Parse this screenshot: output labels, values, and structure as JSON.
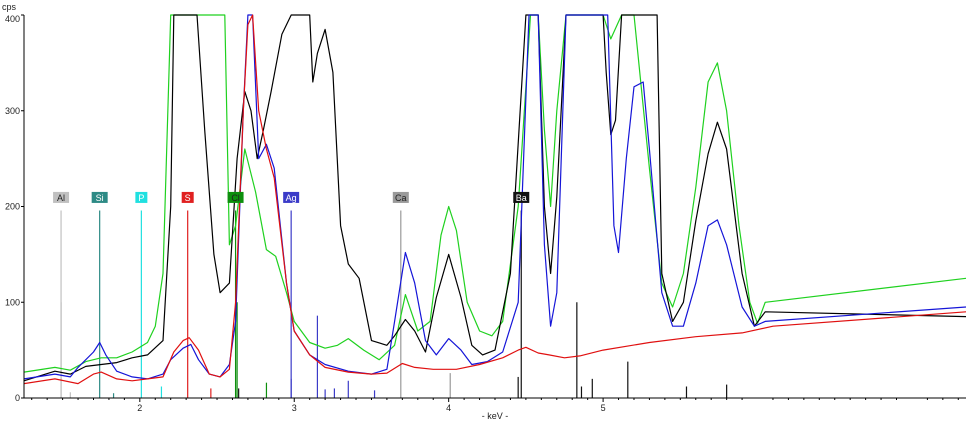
{
  "chart_data": {
    "type": "line",
    "title": "",
    "xlabel": "- keV -",
    "ylabel": "cps",
    "xlim": [
      1.25,
      7.35
    ],
    "ylim": [
      0,
      400
    ],
    "x_ticks": [
      {
        "value": 2,
        "label": "2"
      },
      {
        "value": 3,
        "label": "3"
      },
      {
        "value": 4,
        "label": "4"
      },
      {
        "value": 5,
        "label": "5"
      }
    ],
    "y_ticks": [
      {
        "value": 0,
        "label": "0"
      },
      {
        "value": 100,
        "label": "100"
      },
      {
        "value": 200,
        "label": "200"
      },
      {
        "value": 300,
        "label": "300"
      },
      {
        "value": 400,
        "label": "400"
      }
    ],
    "grid": false,
    "series": [
      {
        "color": "#1fd11f",
        "points": [
          [
            1.25,
            27
          ],
          [
            1.45,
            32
          ],
          [
            1.55,
            29
          ],
          [
            1.65,
            38
          ],
          [
            1.75,
            42
          ],
          [
            1.85,
            42
          ],
          [
            1.95,
            48
          ],
          [
            2.05,
            58
          ],
          [
            2.1,
            75
          ],
          [
            2.15,
            130
          ],
          [
            2.2,
            400
          ],
          [
            2.55,
            400
          ],
          [
            2.58,
            160
          ],
          [
            2.62,
            180
          ],
          [
            2.68,
            260
          ],
          [
            2.75,
            215
          ],
          [
            2.82,
            155
          ],
          [
            2.88,
            148
          ],
          [
            2.95,
            110
          ],
          [
            3.0,
            80
          ],
          [
            3.1,
            58
          ],
          [
            3.2,
            52
          ],
          [
            3.28,
            55
          ],
          [
            3.35,
            62
          ],
          [
            3.45,
            50
          ],
          [
            3.55,
            40
          ],
          [
            3.65,
            55
          ],
          [
            3.72,
            108
          ],
          [
            3.8,
            70
          ],
          [
            3.88,
            80
          ],
          [
            3.95,
            170
          ],
          [
            4.0,
            200
          ],
          [
            4.05,
            175
          ],
          [
            4.12,
            100
          ],
          [
            4.2,
            70
          ],
          [
            4.28,
            65
          ],
          [
            4.35,
            80
          ],
          [
            4.45,
            200
          ],
          [
            4.53,
            400
          ],
          [
            4.58,
            400
          ],
          [
            4.62,
            280
          ],
          [
            4.66,
            200
          ],
          [
            4.7,
            300
          ],
          [
            4.76,
            400
          ],
          [
            4.95,
            400
          ],
          [
            5.0,
            400
          ],
          [
            5.05,
            375
          ],
          [
            5.12,
            400
          ],
          [
            5.2,
            400
          ],
          [
            5.3,
            240
          ],
          [
            5.38,
            120
          ],
          [
            5.45,
            95
          ],
          [
            5.52,
            130
          ],
          [
            5.6,
            220
          ],
          [
            5.68,
            330
          ],
          [
            5.74,
            350
          ],
          [
            5.8,
            300
          ],
          [
            5.88,
            180
          ],
          [
            5.95,
            100
          ],
          [
            6.0,
            78
          ],
          [
            6.05,
            100
          ],
          [
            7.35,
            125
          ]
        ]
      },
      {
        "color": "#000000",
        "points": [
          [
            1.25,
            18
          ],
          [
            1.45,
            28
          ],
          [
            1.55,
            25
          ],
          [
            1.65,
            33
          ],
          [
            1.75,
            35
          ],
          [
            1.85,
            37
          ],
          [
            1.95,
            42
          ],
          [
            2.05,
            45
          ],
          [
            2.15,
            60
          ],
          [
            2.2,
            200
          ],
          [
            2.22,
            400
          ],
          [
            2.37,
            400
          ],
          [
            2.42,
            280
          ],
          [
            2.48,
            150
          ],
          [
            2.52,
            110
          ],
          [
            2.58,
            120
          ],
          [
            2.63,
            250
          ],
          [
            2.68,
            320
          ],
          [
            2.72,
            300
          ],
          [
            2.76,
            250
          ],
          [
            2.8,
            280
          ],
          [
            2.85,
            320
          ],
          [
            2.92,
            380
          ],
          [
            2.98,
            400
          ],
          [
            3.1,
            400
          ],
          [
            3.12,
            330
          ],
          [
            3.15,
            360
          ],
          [
            3.2,
            385
          ],
          [
            3.25,
            340
          ],
          [
            3.3,
            180
          ],
          [
            3.35,
            140
          ],
          [
            3.42,
            125
          ],
          [
            3.5,
            60
          ],
          [
            3.6,
            55
          ],
          [
            3.65,
            65
          ],
          [
            3.72,
            82
          ],
          [
            3.78,
            70
          ],
          [
            3.85,
            48
          ],
          [
            3.92,
            105
          ],
          [
            4.0,
            150
          ],
          [
            4.08,
            105
          ],
          [
            4.15,
            55
          ],
          [
            4.22,
            45
          ],
          [
            4.3,
            50
          ],
          [
            4.4,
            130
          ],
          [
            4.5,
            400
          ],
          [
            4.58,
            400
          ],
          [
            4.62,
            200
          ],
          [
            4.66,
            130
          ],
          [
            4.7,
            210
          ],
          [
            4.76,
            400
          ],
          [
            5.0,
            400
          ],
          [
            5.02,
            340
          ],
          [
            5.05,
            275
          ],
          [
            5.08,
            290
          ],
          [
            5.12,
            400
          ],
          [
            5.35,
            400
          ],
          [
            5.38,
            130
          ],
          [
            5.45,
            80
          ],
          [
            5.52,
            100
          ],
          [
            5.6,
            185
          ],
          [
            5.68,
            255
          ],
          [
            5.74,
            288
          ],
          [
            5.8,
            260
          ],
          [
            5.9,
            130
          ],
          [
            5.98,
            75
          ],
          [
            6.05,
            90
          ],
          [
            7.35,
            85
          ]
        ]
      },
      {
        "color": "#1515d8",
        "points": [
          [
            1.25,
            20
          ],
          [
            1.45,
            25
          ],
          [
            1.55,
            22
          ],
          [
            1.6,
            32
          ],
          [
            1.7,
            48
          ],
          [
            1.74,
            58
          ],
          [
            1.78,
            45
          ],
          [
            1.85,
            28
          ],
          [
            1.95,
            22
          ],
          [
            2.05,
            20
          ],
          [
            2.15,
            25
          ],
          [
            2.2,
            40
          ],
          [
            2.28,
            52
          ],
          [
            2.33,
            56
          ],
          [
            2.38,
            40
          ],
          [
            2.45,
            25
          ],
          [
            2.52,
            22
          ],
          [
            2.58,
            35
          ],
          [
            2.62,
            80
          ],
          [
            2.67,
            300
          ],
          [
            2.7,
            400
          ],
          [
            2.73,
            400
          ],
          [
            2.77,
            250
          ],
          [
            2.82,
            265
          ],
          [
            2.87,
            240
          ],
          [
            2.95,
            120
          ],
          [
            3.0,
            70
          ],
          [
            3.1,
            45
          ],
          [
            3.2,
            35
          ],
          [
            3.35,
            28
          ],
          [
            3.5,
            25
          ],
          [
            3.6,
            30
          ],
          [
            3.65,
            80
          ],
          [
            3.72,
            152
          ],
          [
            3.78,
            120
          ],
          [
            3.85,
            60
          ],
          [
            3.92,
            45
          ],
          [
            4.0,
            62
          ],
          [
            4.08,
            50
          ],
          [
            4.15,
            35
          ],
          [
            4.25,
            38
          ],
          [
            4.35,
            48
          ],
          [
            4.45,
            100
          ],
          [
            4.52,
            400
          ],
          [
            4.58,
            400
          ],
          [
            4.62,
            160
          ],
          [
            4.66,
            75
          ],
          [
            4.7,
            110
          ],
          [
            4.76,
            400
          ],
          [
            5.03,
            400
          ],
          [
            5.07,
            180
          ],
          [
            5.1,
            152
          ],
          [
            5.15,
            250
          ],
          [
            5.2,
            325
          ],
          [
            5.26,
            330
          ],
          [
            5.3,
            260
          ],
          [
            5.38,
            110
          ],
          [
            5.45,
            75
          ],
          [
            5.52,
            75
          ],
          [
            5.6,
            120
          ],
          [
            5.68,
            180
          ],
          [
            5.74,
            186
          ],
          [
            5.8,
            160
          ],
          [
            5.9,
            95
          ],
          [
            5.98,
            75
          ],
          [
            6.05,
            80
          ],
          [
            7.35,
            95
          ]
        ]
      },
      {
        "color": "#e01010",
        "points": [
          [
            1.25,
            15
          ],
          [
            1.45,
            20
          ],
          [
            1.6,
            15
          ],
          [
            1.7,
            25
          ],
          [
            1.75,
            27
          ],
          [
            1.85,
            20
          ],
          [
            1.95,
            18
          ],
          [
            2.05,
            20
          ],
          [
            2.15,
            22
          ],
          [
            2.22,
            48
          ],
          [
            2.28,
            60
          ],
          [
            2.32,
            63
          ],
          [
            2.38,
            50
          ],
          [
            2.45,
            25
          ],
          [
            2.52,
            22
          ],
          [
            2.58,
            30
          ],
          [
            2.62,
            100
          ],
          [
            2.67,
            300
          ],
          [
            2.7,
            390
          ],
          [
            2.73,
            400
          ],
          [
            2.77,
            300
          ],
          [
            2.82,
            260
          ],
          [
            2.87,
            230
          ],
          [
            2.95,
            120
          ],
          [
            3.0,
            70
          ],
          [
            3.1,
            45
          ],
          [
            3.2,
            32
          ],
          [
            3.35,
            27
          ],
          [
            3.5,
            25
          ],
          [
            3.6,
            26
          ],
          [
            3.7,
            36
          ],
          [
            3.78,
            32
          ],
          [
            3.9,
            30
          ],
          [
            4.05,
            30
          ],
          [
            4.2,
            35
          ],
          [
            4.35,
            42
          ],
          [
            4.45,
            50
          ],
          [
            4.5,
            53
          ],
          [
            4.58,
            47
          ],
          [
            4.65,
            45
          ],
          [
            4.75,
            42
          ],
          [
            4.85,
            44
          ],
          [
            5.0,
            50
          ],
          [
            5.3,
            58
          ],
          [
            5.6,
            64
          ],
          [
            5.9,
            68
          ],
          [
            6.1,
            75
          ],
          [
            7.35,
            90
          ]
        ]
      }
    ],
    "element_lines": [
      {
        "label": "Al",
        "x": 1.49,
        "color": "#c0c0c0",
        "text_color": "#222222"
      },
      {
        "label": "Si",
        "x": 1.74,
        "color": "#2d8a85",
        "text_color": "#ffffff"
      },
      {
        "label": "P",
        "x": 2.01,
        "color": "#20e0e0",
        "text_color": "#ffffff"
      },
      {
        "label": "S",
        "x": 2.31,
        "color": "#e02020",
        "text_color": "#ffffff"
      },
      {
        "label": "Cl",
        "x": 2.62,
        "color": "#0d8f0d",
        "text_color": "#222222"
      },
      {
        "label": "Ag",
        "x": 2.98,
        "color": "#3b3bc8",
        "text_color": "#ffffff"
      },
      {
        "label": "Ca",
        "x": 3.69,
        "color": "#9a9a9a",
        "text_color": "#222222"
      },
      {
        "label": "Ba",
        "x": 4.47,
        "color": "#111111",
        "text_color": "#ffffff"
      }
    ],
    "markers": [
      {
        "x": 1.49,
        "h": 100,
        "color": "#c0c0c0"
      },
      {
        "x": 1.55,
        "h": 6,
        "color": "#c0c0c0"
      },
      {
        "x": 1.83,
        "h": 5,
        "color": "#2d8a85"
      },
      {
        "x": 2.14,
        "h": 12,
        "color": "#20e0e0"
      },
      {
        "x": 2.46,
        "h": 10,
        "color": "#e02020"
      },
      {
        "x": 2.63,
        "h": 100,
        "color": "#0d8f0d"
      },
      {
        "x": 2.64,
        "h": 10,
        "color": "#111111"
      },
      {
        "x": 2.82,
        "h": 16,
        "color": "#0d8f0d"
      },
      {
        "x": 2.98,
        "h": 20,
        "color": "#3b3bc8"
      },
      {
        "x": 3.15,
        "h": 86,
        "color": "#3b3bc8"
      },
      {
        "x": 3.2,
        "h": 9,
        "color": "#3b3bc8"
      },
      {
        "x": 3.26,
        "h": 10,
        "color": "#3b3bc8"
      },
      {
        "x": 3.35,
        "h": 18,
        "color": "#3b3bc8"
      },
      {
        "x": 3.52,
        "h": 8,
        "color": "#3b3bc8"
      },
      {
        "x": 4.01,
        "h": 26,
        "color": "#9a9a9a"
      },
      {
        "x": 4.45,
        "h": 22,
        "color": "#111111"
      },
      {
        "x": 4.83,
        "h": 100,
        "color": "#111111"
      },
      {
        "x": 4.86,
        "h": 12,
        "color": "#111111"
      },
      {
        "x": 4.93,
        "h": 20,
        "color": "#111111"
      },
      {
        "x": 5.16,
        "h": 38,
        "color": "#111111"
      },
      {
        "x": 5.54,
        "h": 12,
        "color": "#111111"
      },
      {
        "x": 5.8,
        "h": 14,
        "color": "#111111"
      }
    ]
  }
}
